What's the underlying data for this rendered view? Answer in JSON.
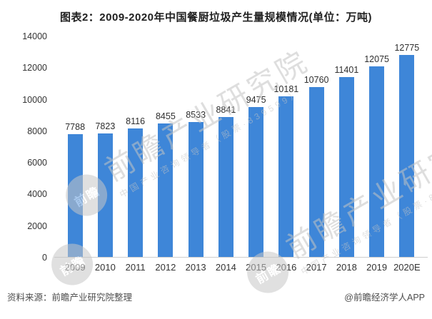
{
  "chart_data": {
    "type": "bar",
    "title": "图表2：2009-2020年中国餐厨垃圾产生量规模情况(单位：万吨)",
    "categories": [
      "2009",
      "2010",
      "2011",
      "2012",
      "2013",
      "2014",
      "2015",
      "2016",
      "2017",
      "2018",
      "2019",
      "2020E"
    ],
    "values": [
      7788,
      7823,
      8116,
      8455,
      8533,
      8841,
      9475,
      10181,
      10760,
      11401,
      12075,
      12775
    ],
    "xlabel": "",
    "ylabel": "",
    "ylim": [
      0,
      14000
    ],
    "yticks": [
      0,
      2000,
      4000,
      6000,
      8000,
      10000,
      12000,
      14000
    ],
    "bar_color": "#3E86D8",
    "grid": false,
    "legend": "none",
    "value_labels": true
  },
  "footer": {
    "source": "资料来源：前瞻产业研究院整理",
    "credit": "@前瞻经济学人APP"
  },
  "watermark": {
    "logo": "前瞻",
    "main": "前瞻产业研究院",
    "sub": "中国产业咨询领导者（股票·839599）"
  }
}
